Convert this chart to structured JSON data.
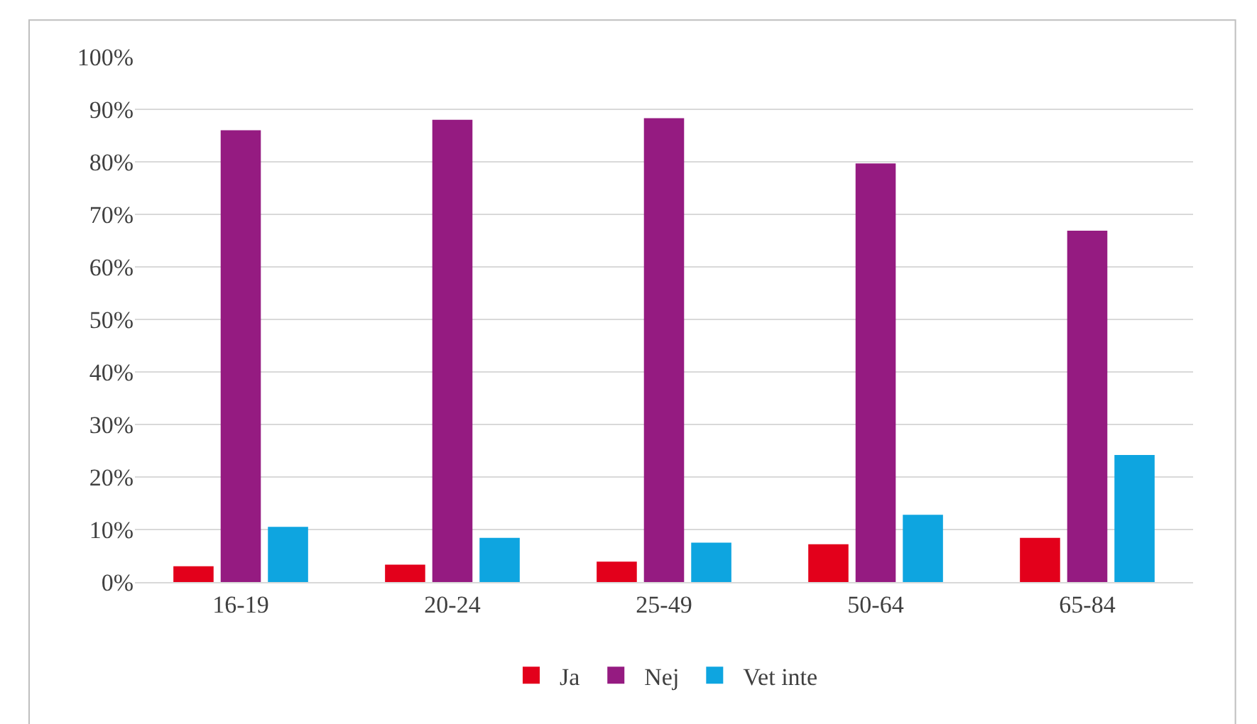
{
  "chart_data": {
    "type": "bar",
    "categories": [
      "16-19",
      "20-24",
      "25-49",
      "50-64",
      "65-84"
    ],
    "series": [
      {
        "name": "Ja",
        "color": "#e3001b",
        "values": [
          3,
          3.3,
          3.9,
          7.2,
          8.4
        ]
      },
      {
        "name": "Nej",
        "color": "#951b81",
        "values": [
          86,
          88,
          88.3,
          79.7,
          66.9
        ]
      },
      {
        "name": "Vet inte",
        "color": "#0ea5e0",
        "values": [
          10.5,
          8.4,
          7.5,
          12.8,
          24.2
        ]
      }
    ],
    "ylim": [
      0,
      100
    ],
    "yticks": [
      {
        "value": 0,
        "label": "0%"
      },
      {
        "value": 10,
        "label": "10%"
      },
      {
        "value": 20,
        "label": "20%"
      },
      {
        "value": 30,
        "label": "30%"
      },
      {
        "value": 40,
        "label": "40%"
      },
      {
        "value": 50,
        "label": "50%"
      },
      {
        "value": 60,
        "label": "60%"
      },
      {
        "value": 70,
        "label": "70%"
      },
      {
        "value": 80,
        "label": "80%"
      },
      {
        "value": 90,
        "label": "90%"
      },
      {
        "value": 100,
        "label": "100%"
      }
    ],
    "grid": "y",
    "legend": "bottom"
  }
}
